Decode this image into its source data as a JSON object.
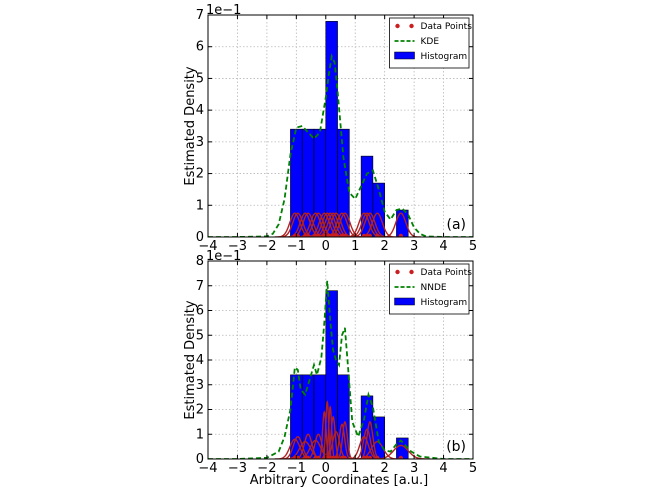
{
  "figure": {
    "xlabel": "Arbitrary Coordinates [a.u.]",
    "ylabel": "Estimated Density"
  },
  "colors": {
    "histogram": "#0000ff",
    "estimate": "#008000",
    "kernels": "#b22222",
    "points": "#cc1e1e"
  },
  "chart_data": [
    {
      "type": "bar",
      "panel_label": "(a)",
      "ylabel": "Estimated Density",
      "xlabel": "",
      "offset_label": "1e−1",
      "xlim": [
        -4,
        5
      ],
      "ylim": [
        0,
        7
      ],
      "xticks": [
        "−4",
        "−3",
        "−2",
        "−1",
        "0",
        "1",
        "2",
        "3",
        "4",
        "5"
      ],
      "yticks": [
        "0",
        "1",
        "2",
        "3",
        "4",
        "5",
        "6",
        "7"
      ],
      "grid": true,
      "legend_position": "top-right",
      "legend": [
        "Data Points",
        "KDE",
        "Histogram"
      ],
      "histogram": {
        "bin_edges": [
          -1.2,
          -0.8,
          -0.4,
          0.0,
          0.4,
          0.8,
          1.2,
          1.6,
          2.0,
          2.4,
          2.8
        ],
        "values": [
          3.4,
          3.4,
          3.4,
          6.8,
          3.4,
          0,
          2.55,
          1.7,
          0,
          0.85
        ]
      },
      "data_points": [
        -1.05,
        -0.95,
        -0.7,
        -0.6,
        -0.35,
        -0.25,
        -0.05,
        0.05,
        0.15,
        0.25,
        0.35,
        0.55,
        0.65,
        1.3,
        1.4,
        1.5,
        1.75,
        2.55
      ],
      "estimate": {
        "name": "KDE",
        "x": [
          -4,
          -3,
          -2,
          -1.8,
          -1.6,
          -1.4,
          -1.2,
          -1.0,
          -0.8,
          -0.6,
          -0.4,
          -0.2,
          0.0,
          0.1,
          0.2,
          0.3,
          0.4,
          0.6,
          0.8,
          1.0,
          1.2,
          1.4,
          1.6,
          1.8,
          2.0,
          2.2,
          2.4,
          2.6,
          2.8,
          3.0,
          3.2,
          3.4,
          4,
          5
        ],
        "y": [
          0,
          0,
          0.02,
          0.1,
          0.4,
          1.2,
          2.6,
          3.45,
          3.5,
          3.3,
          3.1,
          3.3,
          4.4,
          5.1,
          5.7,
          5.5,
          4.6,
          2.5,
          1.4,
          1.2,
          1.6,
          2.0,
          2.1,
          1.5,
          0.8,
          0.55,
          0.85,
          0.9,
          0.7,
          0.3,
          0.1,
          0.02,
          0,
          0
        ]
      },
      "kernels": {
        "sigma": 0.17,
        "peak": 0.75
      }
    },
    {
      "type": "bar",
      "panel_label": "(b)",
      "ylabel": "Estimated Density",
      "xlabel": "Arbitrary Coordinates [a.u.]",
      "offset_label": "1e−1",
      "xlim": [
        -4,
        5
      ],
      "ylim": [
        0,
        8
      ],
      "xticks": [
        "−4",
        "−3",
        "−2",
        "−1",
        "0",
        "1",
        "2",
        "3",
        "4",
        "5"
      ],
      "yticks": [
        "0",
        "1",
        "2",
        "3",
        "4",
        "5",
        "6",
        "7",
        "8"
      ],
      "grid": true,
      "legend_position": "top-right",
      "legend": [
        "Data Points",
        "NNDE",
        "Histogram"
      ],
      "histogram": {
        "bin_edges": [
          -1.2,
          -0.8,
          -0.4,
          0.0,
          0.4,
          0.8,
          1.2,
          1.6,
          2.0,
          2.4,
          2.8
        ],
        "values": [
          3.4,
          3.4,
          3.4,
          6.8,
          3.4,
          0,
          2.55,
          1.7,
          0,
          0.85
        ]
      },
      "data_points": [
        -1.05,
        -0.95,
        -0.7,
        -0.6,
        -0.35,
        -0.25,
        -0.05,
        0.05,
        0.15,
        0.25,
        0.35,
        0.55,
        0.65,
        1.3,
        1.4,
        1.5,
        1.75,
        2.55
      ],
      "estimate": {
        "name": "NNDE",
        "x": [
          -4,
          -3,
          -2,
          -1.6,
          -1.4,
          -1.2,
          -1.05,
          -0.95,
          -0.85,
          -0.7,
          -0.55,
          -0.4,
          -0.3,
          -0.15,
          -0.05,
          0.05,
          0.15,
          0.25,
          0.35,
          0.45,
          0.55,
          0.65,
          0.75,
          0.9,
          1.1,
          1.3,
          1.45,
          1.6,
          1.8,
          2.0,
          2.2,
          2.4,
          2.55,
          2.7,
          2.9,
          3.2,
          4,
          5
        ],
        "y": [
          0,
          0,
          0.05,
          0.3,
          0.9,
          2.0,
          3.7,
          3.6,
          2.8,
          2.6,
          3.2,
          3.8,
          3.4,
          4.1,
          5.5,
          7.2,
          5.6,
          4.4,
          4.0,
          3.8,
          5.0,
          5.3,
          3.8,
          1.5,
          0.9,
          1.6,
          2.6,
          2.1,
          0.7,
          0.35,
          0.3,
          0.6,
          0.75,
          0.55,
          0.3,
          0.1,
          0,
          0
        ]
      },
      "kernels": {
        "sigma": [
          0.17,
          0.15,
          0.19,
          0.13,
          0.18,
          0.12,
          0.06,
          0.05,
          0.05,
          0.07,
          0.12,
          0.09,
          0.08,
          0.15,
          0.12,
          0.1,
          0.2,
          0.25
        ],
        "peak": [
          0.8,
          0.9,
          0.7,
          1.0,
          0.75,
          1.0,
          1.9,
          2.3,
          2.1,
          1.7,
          1.1,
          1.4,
          1.5,
          0.9,
          1.2,
          1.5,
          0.7,
          0.55
        ]
      }
    }
  ]
}
